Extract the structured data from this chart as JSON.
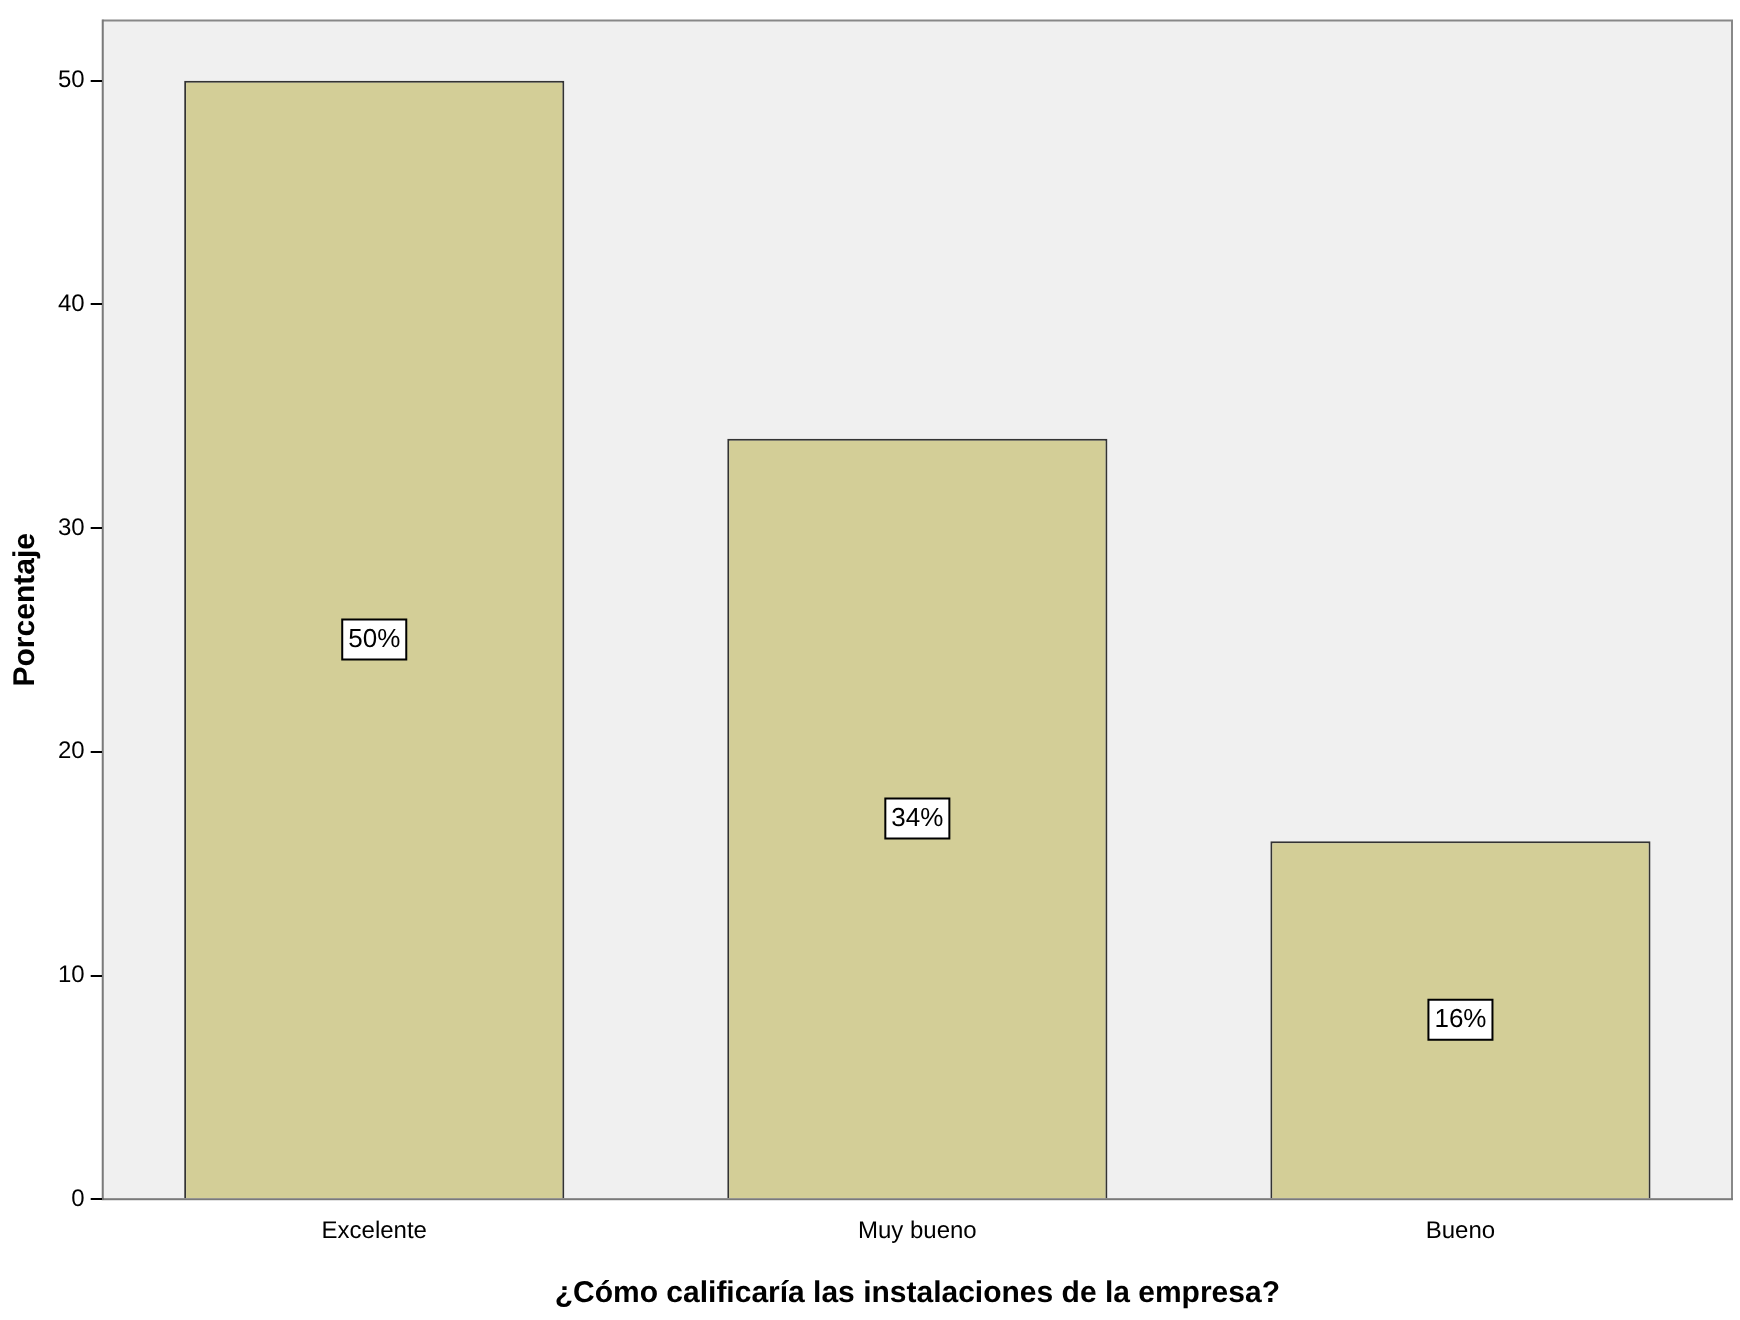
{
  "chart_data": {
    "type": "bar",
    "xlabel": "¿Cómo calificaría las instalaciones de la empresa?",
    "ylabel": "Porcentaje",
    "categories": [
      "Excelente",
      "Muy bueno",
      "Bueno"
    ],
    "values": [
      50,
      34,
      16
    ],
    "value_labels": [
      "50%",
      "34%",
      "16%"
    ],
    "color": "#d3ce97",
    "ylim": [
      0,
      52.7
    ],
    "yticks": [
      0,
      10,
      20,
      30,
      40,
      50
    ],
    "grid": false,
    "legend": false
  }
}
